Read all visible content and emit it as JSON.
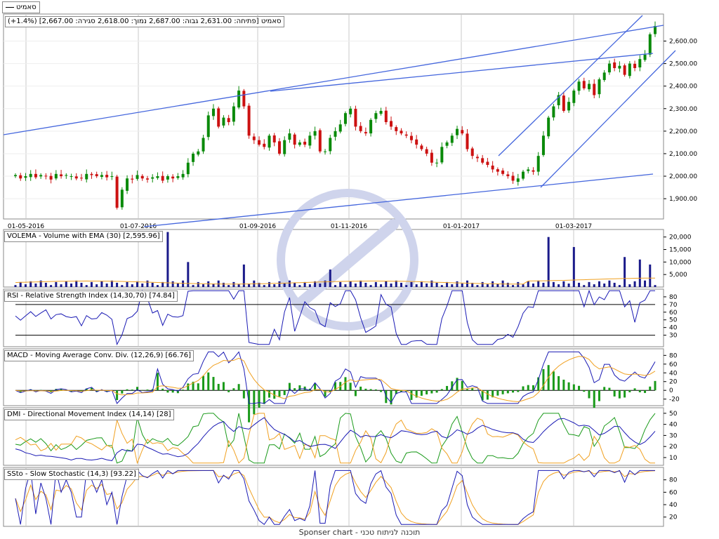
{
  "legend": {
    "label": "סאמיט"
  },
  "price_header": {
    "text": "סאמיט [פתיחה: 2,631.00  גבוה: 2,687.00  נמוך: 2,618.00  סגירה: 2,667.00] (1.4%+)"
  },
  "footer": {
    "text": "Sponser chart - תוכנה לניתוח טכני"
  },
  "colors": {
    "up": "#0a8a0a",
    "down": "#cc1111",
    "blue": "#1a1ab4",
    "orange": "#f0a020",
    "green": "#1a9a1a",
    "trend": "#4466dd",
    "grid": "#c8c8c8"
  },
  "chart_data": [
    {
      "type": "candlestick",
      "x_ticks": [
        "01-05-2016",
        "01-07-2016",
        "01-09-2016",
        "01-11-2016",
        "01-01-2017",
        "01-03-2017"
      ],
      "y_ticks": [
        1900,
        2000,
        2100,
        2200,
        2300,
        2400,
        2500,
        2600
      ],
      "y_tick_labels": [
        "1,900.00",
        "2,000.00",
        "2,100.00",
        "2,200.00",
        "2,300.00",
        "2,400.00",
        "2,500.00",
        "2,600.00"
      ],
      "ylim": [
        1810,
        2720
      ],
      "last": {
        "open": 2631,
        "high": 2687,
        "low": 2618,
        "close": 2667
      },
      "closes_sketch": [
        2005,
        1990,
        2000,
        2010,
        1995,
        2005,
        2000,
        1985,
        2010,
        2000,
        2005,
        2000,
        1990,
        1990,
        2010,
        2005,
        2000,
        2005,
        1995,
        2000,
        1860,
        1940,
        1990,
        1985,
        2005,
        1990,
        1985,
        1995,
        2000,
        1980,
        2000,
        1990,
        2000,
        2010,
        2060,
        2100,
        2110,
        2170,
        2270,
        2300,
        2220,
        2260,
        2240,
        2310,
        2380,
        2310,
        2180,
        2160,
        2140,
        2130,
        2180,
        2150,
        2100,
        2160,
        2190,
        2140,
        2150,
        2140,
        2180,
        2200,
        2110,
        2110,
        2170,
        2200,
        2230,
        2280,
        2300,
        2220,
        2200,
        2190,
        2250,
        2280,
        2290,
        2240,
        2220,
        2200,
        2190,
        2180,
        2160,
        2140,
        2120,
        2100,
        2060,
        2060,
        2130,
        2150,
        2180,
        2210,
        2190,
        2120,
        2090,
        2080,
        2060,
        2050,
        2030,
        2020,
        2010,
        2000,
        1980,
        1990,
        2020,
        2030,
        2020,
        2090,
        2180,
        2260,
        2310,
        2360,
        2290,
        2330,
        2380,
        2420,
        2390,
        2410,
        2360,
        2430,
        2460,
        2500,
        2480,
        2490,
        2450,
        2500,
        2480,
        2520,
        2540,
        2630,
        2667
      ]
    },
    {
      "type": "bar",
      "title": "VOLEMA - Volume with EMA (30) [2,595.96]",
      "y_ticks": [
        5000,
        10000,
        15000,
        20000
      ],
      "y_tick_labels": [
        "5,000",
        "10,000",
        "15,000",
        "20,000"
      ],
      "ylim": [
        0,
        23000
      ]
    },
    {
      "type": "line",
      "title": "RSI - Relative Strength Index (14,30,70) [74.84]",
      "y_ticks": [
        30,
        40,
        50,
        60,
        70,
        80
      ],
      "y_tick_labels": [
        "30",
        "40",
        "50",
        "60",
        "70",
        "80"
      ],
      "ylim": [
        15,
        90
      ],
      "levels": [
        30,
        70
      ]
    },
    {
      "type": "line",
      "title": "MACD - Moving Average Conv. Div. (12,26,9) [66.76]",
      "y_ticks": [
        -20,
        0,
        20,
        40,
        60,
        80
      ],
      "y_tick_labels": [
        "-20",
        "0",
        "20",
        "40",
        "60",
        "80"
      ],
      "ylim": [
        -35,
        95
      ]
    },
    {
      "type": "line",
      "title": "DMI - Directional Movement Index (14,14) [28]",
      "y_ticks": [
        10,
        20,
        30,
        40,
        50
      ],
      "y_tick_labels": [
        "10",
        "20",
        "30",
        "40",
        "50"
      ],
      "ylim": [
        3,
        55
      ]
    },
    {
      "type": "line",
      "title": "SSto - Slow Stochastic (14,3) [93.22]",
      "y_ticks": [
        20,
        40,
        60,
        80
      ],
      "y_tick_labels": [
        "20",
        "40",
        "60",
        "80"
      ],
      "ylim": [
        5,
        100
      ]
    }
  ]
}
